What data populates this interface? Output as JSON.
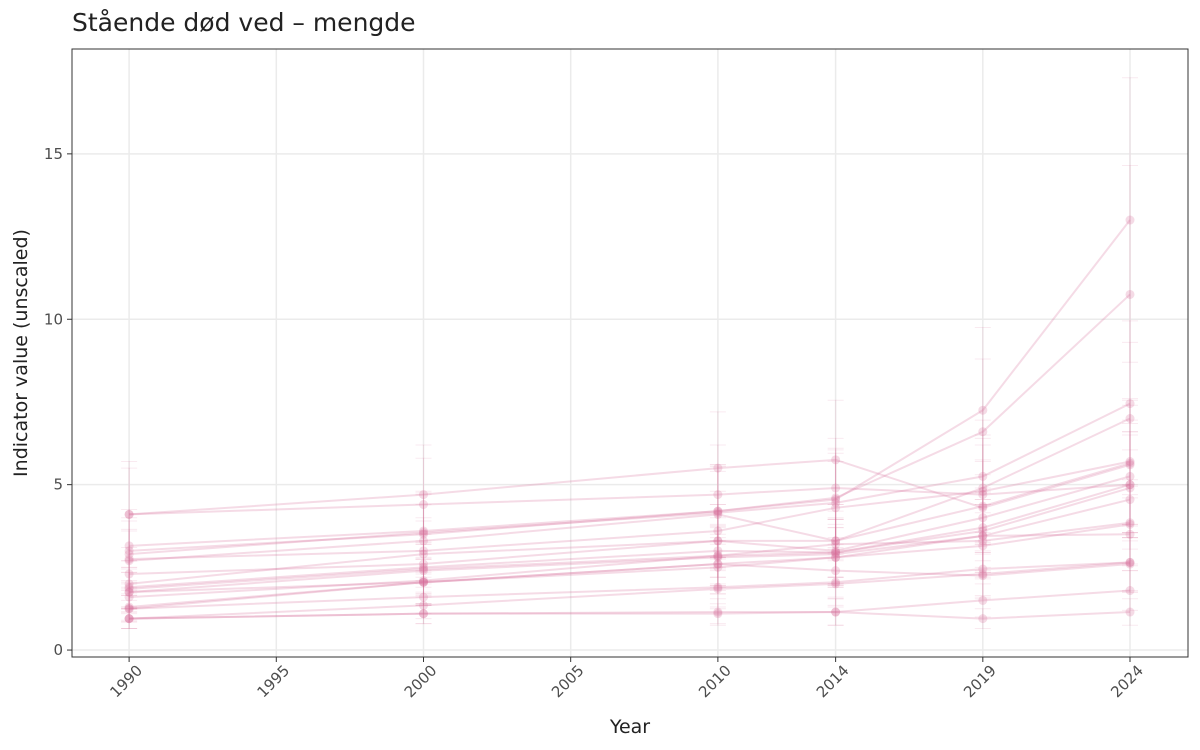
{
  "chart_data": {
    "type": "line",
    "title": "Stående død ved – mengde",
    "x_label": "Year",
    "y_label": "Indicator value (unscaled)",
    "x": [
      1990,
      2000,
      2010,
      2014,
      2019,
      2024
    ],
    "xlim": [
      1988.06,
      2025.97
    ],
    "ylim": [
      -0.21,
      18.17
    ],
    "xticks": [
      1990,
      1995,
      2000,
      2005,
      2010,
      2014,
      2019,
      2024
    ],
    "yticks": [
      0,
      5,
      10,
      15
    ],
    "grid": true,
    "color": "#d6709a",
    "opacity": 0.25,
    "series": [
      {
        "values": [
          4.1,
          4.7,
          5.5,
          5.75,
          4.3,
          5.6
        ],
        "errors": [
          1.6,
          1.5,
          1.7,
          1.8,
          1.4,
          1.8
        ]
      },
      {
        "values": [
          4.1,
          4.4,
          4.7,
          4.9,
          4.7,
          5.0
        ],
        "errors": [
          1.4,
          1.4,
          1.5,
          1.5,
          1.5,
          1.6
        ]
      },
      {
        "values": [
          3.15,
          3.6,
          4.2,
          4.55,
          7.25,
          13.0
        ],
        "errors": [
          1.1,
          1.2,
          1.4,
          1.5,
          2.5,
          4.3
        ]
      },
      {
        "values": [
          3.0,
          3.5,
          4.2,
          4.6,
          6.6,
          10.75
        ],
        "errors": [
          1.0,
          1.2,
          1.4,
          1.5,
          2.2,
          3.9
        ]
      },
      {
        "values": [
          2.9,
          3.55,
          4.15,
          4.45,
          5.25,
          7.45
        ],
        "errors": [
          1.0,
          1.2,
          1.4,
          1.5,
          1.7,
          2.5
        ]
      },
      {
        "values": [
          2.7,
          3.3,
          4.1,
          3.3,
          4.9,
          7.0
        ],
        "errors": [
          0.9,
          1.1,
          1.3,
          1.1,
          1.6,
          2.3
        ]
      },
      {
        "values": [
          2.75,
          3.0,
          3.6,
          4.3,
          4.8,
          5.7
        ],
        "errors": [
          0.9,
          1.0,
          1.2,
          1.4,
          1.6,
          1.9
        ]
      },
      {
        "values": [
          2.3,
          2.6,
          3.3,
          3.3,
          4.35,
          5.65
        ],
        "errors": [
          0.8,
          0.9,
          1.1,
          1.1,
          1.4,
          1.9
        ]
      },
      {
        "values": [
          2.0,
          2.9,
          3.3,
          3.0,
          4.0,
          5.25
        ],
        "errors": [
          0.7,
          1.0,
          1.1,
          1.0,
          1.3,
          1.7
        ]
      },
      {
        "values": [
          1.9,
          2.5,
          3.0,
          2.95,
          3.7,
          5.0
        ],
        "errors": [
          0.6,
          0.8,
          1.0,
          1.0,
          1.2,
          1.6
        ]
      },
      {
        "values": [
          1.85,
          2.45,
          2.85,
          2.95,
          3.6,
          4.9
        ],
        "errors": [
          0.6,
          0.8,
          0.9,
          1.0,
          1.2,
          1.6
        ]
      },
      {
        "values": [
          1.75,
          2.4,
          2.8,
          2.9,
          3.45,
          4.55
        ],
        "errors": [
          0.6,
          0.8,
          0.9,
          0.9,
          1.1,
          1.5
        ]
      },
      {
        "values": [
          1.6,
          2.1,
          2.85,
          3.2,
          3.3,
          3.85
        ],
        "errors": [
          0.5,
          0.7,
          0.9,
          1.0,
          1.1,
          1.3
        ]
      },
      {
        "values": [
          1.3,
          2.05,
          2.6,
          2.8,
          3.15,
          3.8
        ],
        "errors": [
          0.4,
          0.7,
          0.9,
          0.9,
          1.0,
          1.2
        ]
      },
      {
        "values": [
          1.25,
          2.05,
          2.5,
          2.8,
          3.45,
          3.5
        ],
        "errors": [
          0.4,
          0.7,
          0.8,
          0.9,
          1.1,
          1.1
        ]
      },
      {
        "values": [
          1.25,
          1.6,
          1.9,
          2.05,
          2.45,
          2.65
        ],
        "errors": [
          0.4,
          0.5,
          0.6,
          0.7,
          0.8,
          0.9
        ]
      },
      {
        "values": [
          0.95,
          1.35,
          1.85,
          2.0,
          2.3,
          2.65
        ],
        "errors": [
          0.3,
          0.4,
          0.6,
          0.7,
          0.7,
          0.9
        ]
      },
      {
        "values": [
          0.95,
          1.1,
          1.15,
          1.15,
          1.5,
          1.8
        ],
        "errors": [
          0.3,
          0.3,
          0.4,
          0.4,
          0.5,
          0.6
        ]
      },
      {
        "values": [
          0.95,
          1.1,
          1.1,
          1.15,
          0.95,
          1.15
        ],
        "errors": [
          0.3,
          0.3,
          0.3,
          0.4,
          0.3,
          0.4
        ]
      },
      {
        "values": [
          1.75,
          2.05,
          2.6,
          2.4,
          2.25,
          2.6
        ],
        "errors": [
          0.6,
          0.7,
          0.8,
          0.8,
          0.7,
          0.8
        ]
      }
    ]
  }
}
